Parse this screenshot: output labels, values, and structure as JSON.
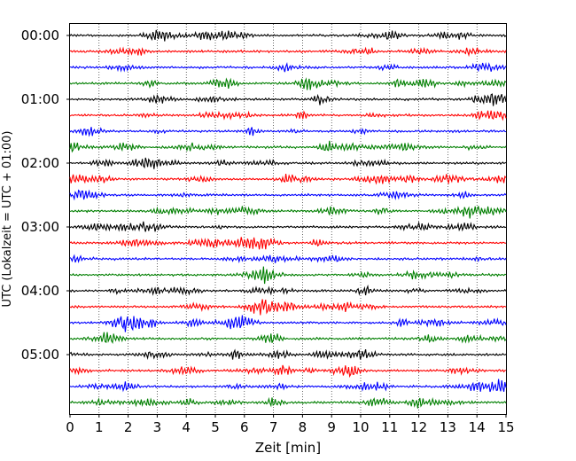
{
  "chart_data": {
    "type": "line",
    "subtype": "helicorder",
    "xlabel": "Zeit  [min]",
    "ylabel": "UTC (Lokalzeit = UTC + 01:00)",
    "xlim": [
      0,
      15
    ],
    "x_ticks": [
      "0",
      "1",
      "2",
      "3",
      "4",
      "5",
      "6",
      "7",
      "8",
      "9",
      "10",
      "11",
      "12",
      "13",
      "14",
      "15"
    ],
    "y_ticks": [
      "00:00",
      "01:00",
      "02:00",
      "03:00",
      "04:00",
      "05:00"
    ],
    "row_interval_min": 15,
    "row_count": 24,
    "trace_colors": [
      "#000000",
      "#ff0000",
      "#0000ff",
      "#007f00"
    ],
    "vertical_grid": "dotted, every 1 min",
    "rows": [
      {
        "time": "00:00"
      },
      {
        "time": "00:15"
      },
      {
        "time": "00:30"
      },
      {
        "time": "00:45"
      },
      {
        "time": "01:00"
      },
      {
        "time": "01:15"
      },
      {
        "time": "01:30"
      },
      {
        "time": "01:45"
      },
      {
        "time": "02:00"
      },
      {
        "time": "02:15"
      },
      {
        "time": "02:30"
      },
      {
        "time": "02:45"
      },
      {
        "time": "03:00"
      },
      {
        "time": "03:15"
      },
      {
        "time": "03:30"
      },
      {
        "time": "03:45"
      },
      {
        "time": "04:00"
      },
      {
        "time": "04:15"
      },
      {
        "time": "04:30"
      },
      {
        "time": "04:45"
      },
      {
        "time": "05:00"
      },
      {
        "time": "05:15"
      },
      {
        "time": "05:30"
      },
      {
        "time": "05:45"
      }
    ]
  }
}
